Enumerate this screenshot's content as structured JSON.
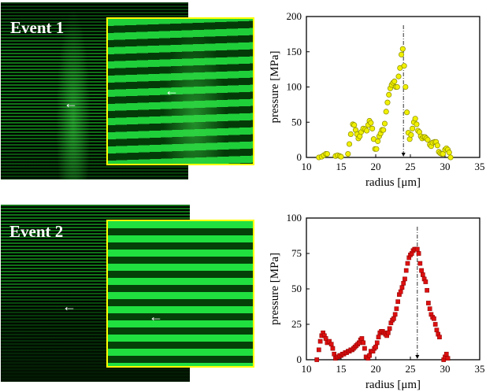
{
  "panels": [
    {
      "label": "Event 1"
    },
    {
      "label": "Event 2"
    }
  ],
  "chart_data": [
    {
      "type": "scatter",
      "xlabel": "radius [μm]",
      "ylabel": "pressure [MPa]",
      "xlim": [
        10,
        35
      ],
      "ylim": [
        0,
        200
      ],
      "xticks": [
        10,
        15,
        20,
        25,
        30,
        35
      ],
      "yticks": [
        0,
        50,
        100,
        150,
        200
      ],
      "marker": "circle",
      "color": "#f0f000",
      "marker_line": "#8a8a00",
      "peak_marker_x": 24,
      "points": [
        [
          11.8,
          0
        ],
        [
          12.2,
          1
        ],
        [
          12.5,
          3
        ],
        [
          12.8,
          5
        ],
        [
          13,
          5
        ],
        [
          14.2,
          2
        ],
        [
          14.5,
          3
        ],
        [
          14.8,
          2
        ],
        [
          15,
          1
        ],
        [
          16,
          5
        ],
        [
          16.2,
          19
        ],
        [
          16.4,
          33
        ],
        [
          16.7,
          47
        ],
        [
          16.9,
          46
        ],
        [
          17.1,
          39
        ],
        [
          17.3,
          33
        ],
        [
          17.5,
          27
        ],
        [
          17.7,
          30
        ],
        [
          17.9,
          36
        ],
        [
          18.2,
          41
        ],
        [
          18.5,
          40
        ],
        [
          18.7,
          38
        ],
        [
          18.9,
          46
        ],
        [
          19.1,
          52
        ],
        [
          19.3,
          49
        ],
        [
          19.5,
          41
        ],
        [
          19.7,
          26
        ],
        [
          19.9,
          12
        ],
        [
          20.1,
          12
        ],
        [
          20.3,
          23
        ],
        [
          20.5,
          30
        ],
        [
          20.7,
          34
        ],
        [
          20.9,
          39
        ],
        [
          21.1,
          39
        ],
        [
          21.3,
          48
        ],
        [
          21.5,
          65
        ],
        [
          21.7,
          78
        ],
        [
          21.9,
          89
        ],
        [
          22.1,
          98
        ],
        [
          22.3,
          103
        ],
        [
          22.5,
          106
        ],
        [
          22.7,
          108
        ],
        [
          22.9,
          100
        ],
        [
          23.1,
          100
        ],
        [
          23.3,
          115
        ],
        [
          23.5,
          127
        ],
        [
          23.7,
          146
        ],
        [
          23.9,
          154
        ],
        [
          24.1,
          130
        ],
        [
          24.3,
          100
        ],
        [
          24.5,
          64
        ],
        [
          24.7,
          35
        ],
        [
          24.9,
          26
        ],
        [
          25.1,
          32
        ],
        [
          25.3,
          41
        ],
        [
          25.5,
          50
        ],
        [
          25.7,
          55
        ],
        [
          25.9,
          47
        ],
        [
          26.1,
          38
        ],
        [
          26.3,
          36
        ],
        [
          26.5,
          30
        ],
        [
          26.7,
          27
        ],
        [
          26.9,
          29
        ],
        [
          27.1,
          29
        ],
        [
          27.3,
          27
        ],
        [
          27.5,
          25
        ],
        [
          27.8,
          18
        ],
        [
          28,
          16
        ],
        [
          28.2,
          21
        ],
        [
          28.5,
          22
        ],
        [
          28.7,
          22
        ],
        [
          28.9,
          17
        ],
        [
          29.1,
          8
        ],
        [
          29.3,
          6
        ],
        [
          29.5,
          5
        ],
        [
          29.7,
          5
        ],
        [
          30,
          11
        ],
        [
          30.2,
          13
        ],
        [
          30.4,
          11
        ],
        [
          30.6,
          7
        ],
        [
          30.8,
          0
        ]
      ]
    },
    {
      "type": "scatter",
      "xlabel": "radius [μm]",
      "ylabel": "pressure [MPa]",
      "xlim": [
        10,
        35
      ],
      "ylim": [
        0,
        100
      ],
      "xticks": [
        10,
        15,
        20,
        25,
        30,
        35
      ],
      "yticks": [
        0,
        25,
        50,
        75,
        100
      ],
      "marker": "square",
      "color": "#dd1010",
      "marker_line": "#8a0000",
      "peak_marker_x": 26,
      "points": [
        [
          11.5,
          0
        ],
        [
          11.8,
          7
        ],
        [
          12,
          13
        ],
        [
          12.2,
          17
        ],
        [
          12.4,
          19
        ],
        [
          12.6,
          17
        ],
        [
          12.8,
          15
        ],
        [
          13,
          12
        ],
        [
          13.3,
          13
        ],
        [
          13.6,
          11
        ],
        [
          13.8,
          8
        ],
        [
          14,
          4
        ],
        [
          14.2,
          1
        ],
        [
          14.4,
          2
        ],
        [
          14.6,
          2
        ],
        [
          14.8,
          3
        ],
        [
          15,
          3
        ],
        [
          15.2,
          4
        ],
        [
          15.4,
          4
        ],
        [
          15.6,
          5
        ],
        [
          15.8,
          5
        ],
        [
          16,
          6
        ],
        [
          16.2,
          6
        ],
        [
          16.4,
          7
        ],
        [
          16.6,
          7
        ],
        [
          16.8,
          8
        ],
        [
          17,
          9
        ],
        [
          17.2,
          10
        ],
        [
          17.4,
          11
        ],
        [
          17.6,
          12
        ],
        [
          17.8,
          14
        ],
        [
          18,
          15
        ],
        [
          18.2,
          12
        ],
        [
          18.4,
          8
        ],
        [
          18.6,
          2
        ],
        [
          18.9,
          1
        ],
        [
          19.1,
          3
        ],
        [
          19.3,
          6
        ],
        [
          19.6,
          6
        ],
        [
          19.8,
          8
        ],
        [
          20,
          9
        ],
        [
          20.2,
          12
        ],
        [
          20.4,
          16
        ],
        [
          20.6,
          19
        ],
        [
          20.8,
          20
        ],
        [
          21,
          20
        ],
        [
          21.2,
          19
        ],
        [
          21.4,
          18
        ],
        [
          21.6,
          17
        ],
        [
          21.8,
          19
        ],
        [
          22,
          22
        ],
        [
          22.2,
          26
        ],
        [
          22.4,
          28
        ],
        [
          22.6,
          29
        ],
        [
          22.8,
          32
        ],
        [
          23,
          36
        ],
        [
          23.2,
          41
        ],
        [
          23.4,
          46
        ],
        [
          23.6,
          48
        ],
        [
          23.8,
          51
        ],
        [
          24,
          54
        ],
        [
          24.2,
          57
        ],
        [
          24.4,
          63
        ],
        [
          24.6,
          68
        ],
        [
          24.8,
          72
        ],
        [
          25,
          74
        ],
        [
          25.2,
          75
        ],
        [
          25.4,
          77
        ],
        [
          25.6,
          78
        ],
        [
          25.8,
          78
        ],
        [
          26,
          78
        ],
        [
          26.2,
          75
        ],
        [
          26.4,
          68
        ],
        [
          26.6,
          63
        ],
        [
          26.8,
          60
        ],
        [
          27,
          57
        ],
        [
          27.2,
          55
        ],
        [
          27.4,
          49
        ],
        [
          27.6,
          40
        ],
        [
          27.8,
          36
        ],
        [
          28,
          32
        ],
        [
          28.2,
          30
        ],
        [
          28.4,
          29
        ],
        [
          28.6,
          25
        ],
        [
          28.8,
          21
        ],
        [
          29,
          18
        ],
        [
          29.2,
          16
        ],
        [
          29.8,
          0
        ],
        [
          30,
          2
        ],
        [
          30.2,
          4
        ],
        [
          30.4,
          1
        ]
      ]
    }
  ]
}
